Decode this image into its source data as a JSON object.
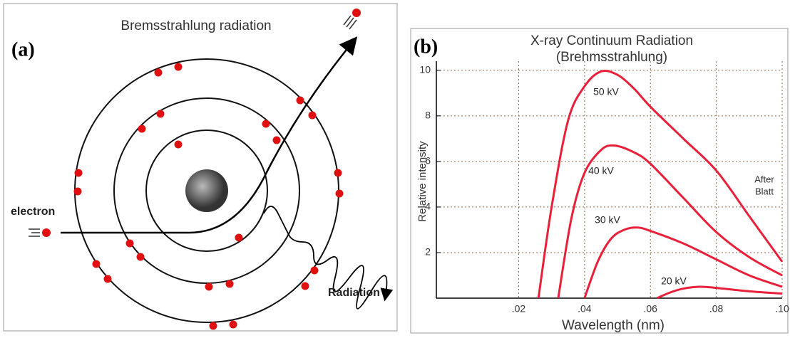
{
  "panel_a": {
    "label": "(a)",
    "title": "Bremsstrahlung radiation",
    "electron_label": "electron",
    "radiation_label": "Radiation"
  },
  "chart_data": {
    "type": "line",
    "panel_label": "(b)",
    "title": "X-ray Continuum Radiation",
    "subtitle": "(Brehmsstrahlung)",
    "x_label": "Wavelength (nm)",
    "y_label": "Relative intensity",
    "annotation_lines": [
      "After",
      "Blatt"
    ],
    "xlim": [
      -0.005,
      0.1
    ],
    "ylim": [
      0,
      10.4
    ],
    "xticks": [
      {
        "value": 0.02,
        "label": ".02"
      },
      {
        "value": 0.04,
        "label": ".04"
      },
      {
        "value": 0.06,
        "label": ".06"
      },
      {
        "value": 0.08,
        "label": ".08"
      },
      {
        "value": 0.1,
        "label": ".10"
      }
    ],
    "yticks": [
      2,
      4,
      6,
      8,
      10
    ],
    "grid": true,
    "series": [
      {
        "name": "50 kV",
        "color": "#e8203a",
        "x": [
          0.026,
          0.03,
          0.035,
          0.04,
          0.045,
          0.05,
          0.055,
          0.06,
          0.07,
          0.08,
          0.09,
          0.1
        ],
        "values": [
          0,
          4,
          7.8,
          9.3,
          9.95,
          9.8,
          9.2,
          8.4,
          7.0,
          5.6,
          3.6,
          1.6
        ]
      },
      {
        "name": "40 kV",
        "color": "#e8203a",
        "x": [
          0.032,
          0.036,
          0.04,
          0.045,
          0.049,
          0.055,
          0.06,
          0.07,
          0.08,
          0.09,
          0.1
        ],
        "values": [
          0,
          3.5,
          5.5,
          6.5,
          6.7,
          6.4,
          5.9,
          4.4,
          2.9,
          1.8,
          1.0
        ]
      },
      {
        "name": "30 kV",
        "color": "#e8203a",
        "x": [
          0.04,
          0.044,
          0.048,
          0.052,
          0.056,
          0.06,
          0.07,
          0.08,
          0.09,
          0.1
        ],
        "values": [
          0,
          1.6,
          2.6,
          3.0,
          3.1,
          2.95,
          2.4,
          1.7,
          1.0,
          0.5
        ]
      },
      {
        "name": "20 kV",
        "color": "#e8203a",
        "x": [
          0.062,
          0.066,
          0.07,
          0.075,
          0.08,
          0.09,
          0.1
        ],
        "values": [
          0,
          0.25,
          0.42,
          0.5,
          0.45,
          0.3,
          0.2
        ]
      }
    ]
  }
}
